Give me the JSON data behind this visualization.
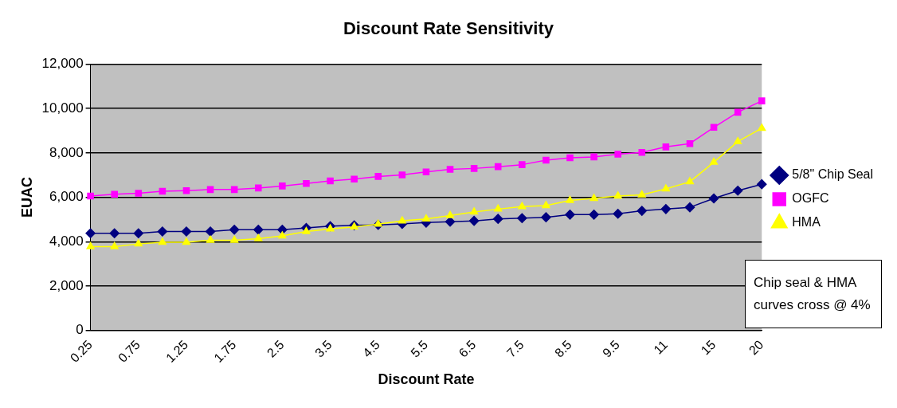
{
  "chart_data": {
    "type": "line",
    "title": "Discount Rate Sensitivity",
    "xlabel": "Discount Rate",
    "ylabel": "EUAC",
    "categories": [
      "0.25",
      null,
      "0.75",
      null,
      "1.25",
      null,
      "1.75",
      null,
      "2.5",
      null,
      "3.5",
      null,
      "4.5",
      null,
      "5.5",
      null,
      "6.5",
      null,
      "7.5",
      null,
      "8.5",
      null,
      "9.5",
      null,
      "11",
      null,
      "15",
      null,
      "20"
    ],
    "series": [
      {
        "name": "5/8\" Chip Seal",
        "color": "#000080",
        "marker": "diamond",
        "values": [
          4380,
          4380,
          4380,
          4460,
          4460,
          4460,
          4540,
          4540,
          4540,
          4620,
          4700,
          4740,
          4760,
          4800,
          4860,
          4900,
          4940,
          5030,
          5060,
          5100,
          5220,
          5220,
          5260,
          5390,
          5470,
          5550,
          5950,
          6300,
          6590
        ]
      },
      {
        "name": "OGFC",
        "color": "#ff00ff",
        "marker": "square",
        "values": [
          6060,
          6140,
          6180,
          6270,
          6300,
          6350,
          6350,
          6420,
          6510,
          6620,
          6740,
          6820,
          6940,
          7010,
          7140,
          7260,
          7300,
          7380,
          7470,
          7670,
          7780,
          7820,
          7940,
          8020,
          8270,
          8420,
          9150,
          9830,
          10340
        ]
      },
      {
        "name": "HMA",
        "color": "#ffff00",
        "marker": "triangle",
        "values": [
          3780,
          3780,
          3900,
          3980,
          3980,
          4070,
          4070,
          4140,
          4260,
          4460,
          4580,
          4670,
          4790,
          4940,
          5030,
          5180,
          5340,
          5470,
          5580,
          5630,
          5860,
          5950,
          6060,
          6110,
          6380,
          6700,
          7580,
          8510,
          9110
        ]
      }
    ],
    "ylim": [
      0,
      12000
    ],
    "yticks": [
      0,
      {
        "value": 2000,
        "label": "2,000"
      },
      {
        "value": 4000,
        "label": "4,000"
      },
      {
        "value": 6000,
        "label": "6,000"
      },
      {
        "value": 8000,
        "label": "8,000"
      },
      {
        "value": 10000,
        "label": "10,000"
      },
      {
        "value": 12000,
        "label": "12,000"
      }
    ],
    "grid": "y",
    "legend": "right",
    "line_style": "solid",
    "annotations": [
      "Chip seal & HMA curves cross @ 4%"
    ]
  }
}
